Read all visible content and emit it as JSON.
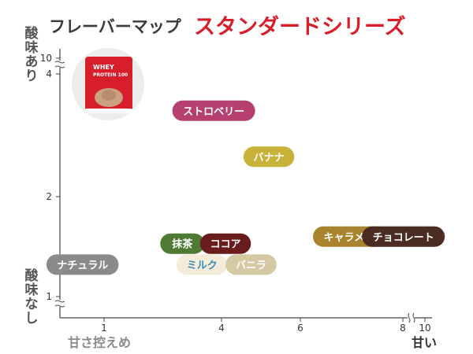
{
  "header": {
    "title_prefix": "フレーバーマップ",
    "title_main": "スタンダードシリーズ"
  },
  "axes": {
    "y_top_label": [
      "酸",
      "味",
      "あ",
      "り"
    ],
    "y_bottom_label": [
      "酸",
      "味",
      "な",
      "し"
    ],
    "x_left_label": "甘さ控えめ",
    "x_right_label": "甘い"
  },
  "product_image": {
    "line1": "WHEY",
    "line2": "PROTEIN 100"
  },
  "colors": {
    "axis": "#444444",
    "title_accent": "#d81e2a"
  },
  "chart_data": {
    "type": "scatter",
    "title": "",
    "xlabel": "甘さ控えめ → 甘い",
    "ylabel": "酸味なし → 酸味あり",
    "x_ticks": [
      "1",
      "4",
      "6",
      "8",
      "10"
    ],
    "y_ticks": [
      "10",
      "4",
      "2",
      "1"
    ],
    "xlim": [
      0.5,
      10.5
    ],
    "ylim": [
      0.9,
      4.25
    ],
    "axis_breaks": {
      "x": "8–10",
      "y": "4–10"
    },
    "points": [
      {
        "name": "ストロベリー",
        "x": 3.8,
        "y": 3.4,
        "color": "#b6406f",
        "text_color": "#ffffff"
      },
      {
        "name": "バナナ",
        "x": 5.2,
        "y": 2.65,
        "color": "#c9b23a",
        "text_color": "#ffffff"
      },
      {
        "name": "キャラメル",
        "x": 6.95,
        "y": 1.6,
        "color": "#a9832d",
        "text_color": "#ffffff"
      },
      {
        "name": "チョコレート",
        "x": 8.05,
        "y": 1.6,
        "color": "#4a2c22",
        "text_color": "#ffffff"
      },
      {
        "name": "抹茶",
        "x": 3.0,
        "y": 1.53,
        "color": "#4e7a34",
        "text_color": "#ffffff"
      },
      {
        "name": "ココア",
        "x": 4.1,
        "y": 1.53,
        "color": "#6a1b1b",
        "text_color": "#ffffff"
      },
      {
        "name": "ナチュラル",
        "x": 0.45,
        "y": 1.32,
        "color": "#8a8a8a",
        "text_color": "#ffffff"
      },
      {
        "name": "ミルク",
        "x": 3.5,
        "y": 1.32,
        "color": "#f3ecd8",
        "text_color": "#3a8cc0"
      },
      {
        "name": "バニラ",
        "x": 4.75,
        "y": 1.32,
        "color": "#d4c9a2",
        "text_color": "#ffffff"
      }
    ]
  }
}
